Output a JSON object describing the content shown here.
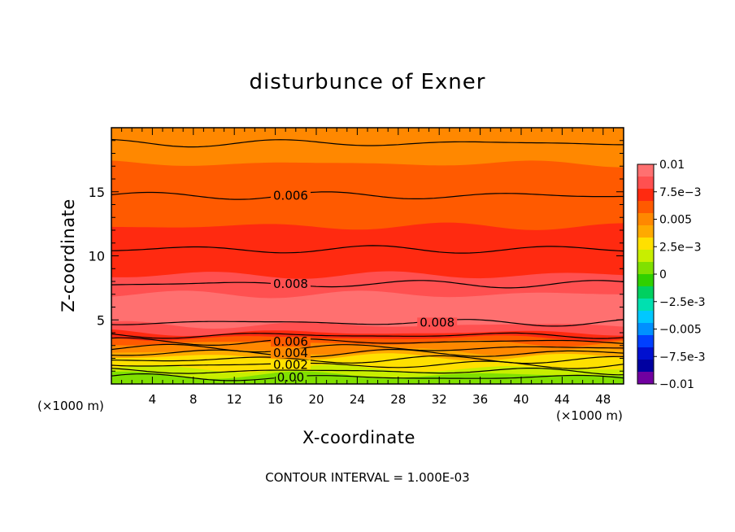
{
  "chart_data": {
    "type": "heatmap",
    "title": "disturbunce of Exner",
    "xlabel": "X-coordinate",
    "ylabel": "Z-coordinate",
    "x_unit_left": "(×1000 m)",
    "x_unit_right": "(×1000 m)",
    "footer": "CONTOUR INTERVAL = 1.000E-03",
    "xlim": [
      0,
      50
    ],
    "ylim": [
      0,
      20
    ],
    "x_ticks": [
      4,
      8,
      12,
      16,
      20,
      24,
      28,
      32,
      36,
      40,
      44,
      48
    ],
    "x_tick_labels": [
      "4",
      "8",
      "12",
      "16",
      "20",
      "24",
      "28",
      "32",
      "36",
      "40",
      "44",
      "48"
    ],
    "y_ticks": [
      5,
      10,
      15
    ],
    "y_tick_labels": [
      "5",
      "10",
      "15"
    ],
    "colorbar": {
      "range": [
        -0.01,
        0.01
      ],
      "tick_values": [
        0.01,
        0.0075,
        0.005,
        0.0025,
        0,
        -0.0025,
        -0.005,
        -0.0075,
        -0.01
      ],
      "tick_labels": [
        "0.01",
        "7.5e-3",
        "0.005",
        "2.5e-3",
        "0",
        "-2.5e-3",
        "-0.005",
        "-7.5e-3",
        "-0.01"
      ],
      "colors": [
        "#ff7070",
        "#ff5050",
        "#ff2a10",
        "#ff5a00",
        "#ff8800",
        "#ffaa00",
        "#ffe000",
        "#c8ee00",
        "#80e000",
        "#30d000",
        "#00d060",
        "#00e0b0",
        "#00c8ff",
        "#0090ff",
        "#0040ff",
        "#0010d0",
        "#0000a0",
        "#7000a0"
      ]
    },
    "contour_interval": 0.001,
    "field_rows": [
      {
        "z": 19.5,
        "value": 0.0047
      },
      {
        "z": 18.5,
        "value": 0.0052
      },
      {
        "z": 17.2,
        "value": 0.0056
      },
      {
        "z": 15.8,
        "value": 0.0059
      },
      {
        "z": 14.0,
        "value": 0.0064
      },
      {
        "z": 12.3,
        "value": 0.0068
      },
      {
        "z": 10.0,
        "value": 0.0074
      },
      {
        "z": 8.5,
        "value": 0.0079
      },
      {
        "z": 7.0,
        "value": 0.0089
      },
      {
        "z": 5.8,
        "value": 0.0093
      },
      {
        "z": 4.6,
        "value": 0.0082
      },
      {
        "z": 4.0,
        "value": 0.0071
      },
      {
        "z": 3.6,
        "value": 0.0061
      },
      {
        "z": 3.2,
        "value": 0.0053
      },
      {
        "z": 2.9,
        "value": 0.0046
      },
      {
        "z": 2.5,
        "value": 0.0039
      },
      {
        "z": 2.1,
        "value": 0.0031
      },
      {
        "z": 1.7,
        "value": 0.0023
      },
      {
        "z": 1.2,
        "value": 0.0014
      },
      {
        "z": 0.7,
        "value": 0.0006
      },
      {
        "z": 0.2,
        "value": 0.0001
      }
    ],
    "contours": [
      {
        "level": 0.0,
        "z": 0.5,
        "label": "0.00",
        "label_x": 17.5
      },
      {
        "level": 0.001,
        "z": 1.0
      },
      {
        "level": 0.002,
        "z": 1.5,
        "label": "0.002",
        "label_x": 17.5
      },
      {
        "level": 0.003,
        "z": 1.9
      },
      {
        "level": 0.004,
        "z": 2.4,
        "label": "0.004",
        "label_x": 17.5
      },
      {
        "level": 0.005,
        "z": 2.8
      },
      {
        "level": 0.006,
        "z": 3.3,
        "label": "0.006",
        "label_x": 17.5
      },
      {
        "level": 0.007,
        "z": 3.8
      },
      {
        "level": 0.008,
        "z": 4.8,
        "label": "0.008",
        "label_x": 31.8
      },
      {
        "level": 0.008,
        "z": 7.8,
        "label": "0.008",
        "label_x": 17.5
      },
      {
        "level": 0.007,
        "z": 10.5
      },
      {
        "level": 0.006,
        "z": 14.7,
        "label": "0.006",
        "label_x": 17.5
      },
      {
        "level": 0.005,
        "z": 18.8
      }
    ]
  }
}
